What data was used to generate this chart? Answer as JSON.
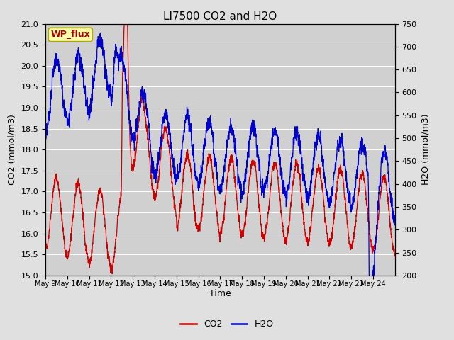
{
  "title": "LI7500 CO2 and H2O",
  "xlabel": "Time",
  "ylabel_left": "CO2 (mmol/m3)",
  "ylabel_right": "H2O (mmol/m3)",
  "co2_ylim": [
    15.0,
    21.0
  ],
  "h2o_ylim": [
    200,
    750
  ],
  "xtick_labels": [
    "May 9",
    "May 10",
    "May 11",
    "May 12",
    "May 13",
    "May 14",
    "May 15",
    "May 16",
    "May 17",
    "May 18",
    "May 19",
    "May 20",
    "May 21",
    "May 22",
    "May 23",
    "May 24"
  ],
  "co2_color": "#cc0000",
  "h2o_color": "#0000cc",
  "fig_bg_color": "#e0e0e0",
  "plot_bg_color": "#d0d0d0",
  "grid_color": "#ffffff",
  "watermark_text": "WP_flux",
  "watermark_color": "#aa0000",
  "watermark_bg": "#ffffaa",
  "watermark_border": "#aaaa00",
  "title_fontsize": 11,
  "axis_fontsize": 9,
  "tick_fontsize": 8,
  "legend_fontsize": 9,
  "line_width": 0.9,
  "seed": 42,
  "n_days": 16,
  "points_per_day": 144
}
